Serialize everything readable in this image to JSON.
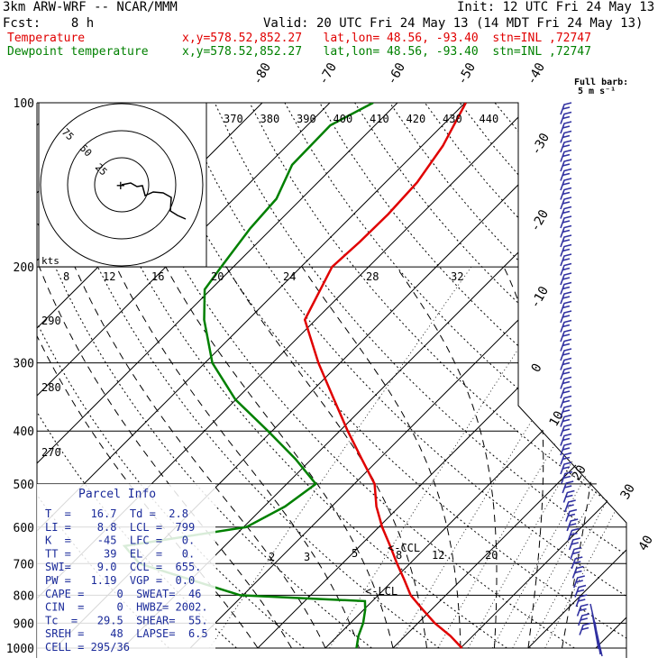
{
  "header": {
    "model": "3km ARW-WRF -- NCAR/MMM",
    "init": "Init: 12 UTC Fri 24 May 13",
    "fcst": "Fcst:    8 h",
    "valid": "Valid: 20 UTC Fri 24 May 13 (14 MDT Fri 24 May 13)",
    "temp_label": "Temperature",
    "dew_label": "Dewpoint temperature",
    "temp_info": "x,y=578.52,852.27   lat,lon= 48.56, -93.40  stn=INL ,72747",
    "dew_info": "x,y=578.52,852.27   lat,lon= 48.56, -93.40  stn=INL ,72747"
  },
  "colors": {
    "temperature": "#e00000",
    "dewpoint": "#008000",
    "wind": "#3030a0",
    "grid": "#000000"
  },
  "chart_data": {
    "type": "line",
    "y_axis": "pressure (hPa)",
    "pressure_ticks": [
      "100",
      "200",
      "300",
      "400",
      "500",
      "600",
      "700",
      "800",
      "900",
      "1000"
    ],
    "temp_ticks": [
      "-80",
      "-70",
      "-60",
      "-50",
      "-40",
      "-30",
      "-20",
      "-10",
      "0",
      "10",
      "20",
      "30",
      "40"
    ],
    "theta_labels": [
      "370",
      "380",
      "390",
      "400",
      "410",
      "420",
      "430",
      "440"
    ],
    "theta_side_labels": [
      "290",
      "280",
      "270"
    ],
    "mixing_ratio_upper": [
      "8",
      "12",
      "16",
      "20",
      "24",
      "28",
      "32"
    ],
    "mixing_ratio_lower": [
      "2",
      "3",
      "5",
      "8",
      "12",
      "20"
    ],
    "kts_label": "kts",
    "hodograph_rings": [
      "75",
      "50",
      "25"
    ],
    "wind_label": [
      "Full barb:",
      "5 m s⁻¹"
    ],
    "ccl_label": "<-CCL",
    "lcl_label": "<-LCL",
    "series": [
      {
        "name": "Temperature",
        "points": [
          [
            1000,
            20.2
          ],
          [
            950,
            16.7
          ],
          [
            900,
            12.5
          ],
          [
            850,
            8.7
          ],
          [
            800,
            4.8
          ],
          [
            750,
            1.6
          ],
          [
            700,
            -1.9
          ],
          [
            650,
            -5.5
          ],
          [
            600,
            -9.5
          ],
          [
            550,
            -13.4
          ],
          [
            500,
            -17.0
          ],
          [
            450,
            -22.6
          ],
          [
            400,
            -28.8
          ],
          [
            350,
            -35.5
          ],
          [
            300,
            -43.2
          ],
          [
            250,
            -51.6
          ],
          [
            200,
            -55.4
          ],
          [
            180,
            -55.0
          ],
          [
            160,
            -54.9
          ],
          [
            140,
            -55.3
          ],
          [
            120,
            -56.9
          ],
          [
            100,
            -59.9
          ]
        ]
      },
      {
        "name": "Dewpoint temperature",
        "points": [
          [
            1000,
            4.6
          ],
          [
            950,
            3.1
          ],
          [
            900,
            1.9
          ],
          [
            850,
            0.2
          ],
          [
            820,
            -1.1
          ],
          [
            800,
            -20.4
          ],
          [
            700,
            -40.0
          ],
          [
            650,
            -44.8
          ],
          [
            600,
            -29.6
          ],
          [
            550,
            -26.9
          ],
          [
            500,
            -25.7
          ],
          [
            450,
            -32.4
          ],
          [
            400,
            -40.6
          ],
          [
            350,
            -50.1
          ],
          [
            300,
            -58.9
          ],
          [
            250,
            -66.5
          ],
          [
            220,
            -70.9
          ],
          [
            200,
            -71.8
          ],
          [
            170,
            -73.2
          ],
          [
            150,
            -73.7
          ],
          [
            130,
            -76.4
          ],
          [
            110,
            -76.6
          ],
          [
            100,
            -73.6
          ]
        ]
      }
    ]
  },
  "parcel": {
    "title": "Parcel Info",
    "rows": [
      "T  =   16.7  Td =  2.8",
      "LI =    8.8  LCL =  799",
      "K  =    -45  LFC =   0.",
      "TT =     39  EL  =   0.",
      "SWI=    9.0  CCL =  655.",
      "PW =   1.19  VGP =  0.0",
      "CAPE =     0  SWEAT=  46",
      "CIN  =     0  HWBZ= 2002.",
      "Tc  =   29.5  SHEAR=  55.",
      "SREH =    48  LAPSE=  6.5",
      "CELL = 295/36"
    ]
  }
}
